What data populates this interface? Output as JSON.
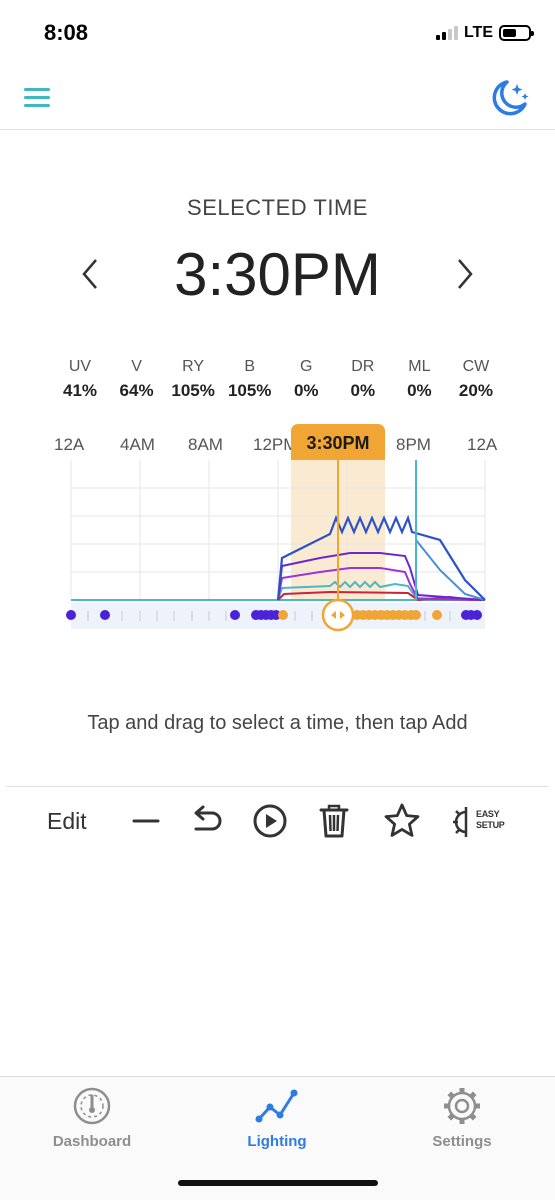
{
  "status_bar": {
    "time": "8:08",
    "network": "LTE",
    "battery_level": 0.55
  },
  "selected_time": {
    "label": "SELECTED TIME",
    "value": "3:30PM"
  },
  "channels": [
    {
      "name": "UV",
      "value": "41%"
    },
    {
      "name": "V",
      "value": "64%"
    },
    {
      "name": "RY",
      "value": "105%"
    },
    {
      "name": "B",
      "value": "105%"
    },
    {
      "name": "G",
      "value": "0%"
    },
    {
      "name": "DR",
      "value": "0%"
    },
    {
      "name": "ML",
      "value": "0%"
    },
    {
      "name": "CW",
      "value": "20%"
    }
  ],
  "time_axis": {
    "labels": [
      "12A",
      "4AM",
      "8AM",
      "12PM",
      "8PM",
      "12A"
    ],
    "cursor_label": "3:30PM"
  },
  "hint": "Tap and drag to select a time, then tap Add",
  "toolbar": {
    "edit_label": "Edit",
    "easy_setup_line1": "EASY",
    "easy_setup_line2": "SETUP"
  },
  "tabs": [
    {
      "label": "Dashboard",
      "icon": "gauge-icon",
      "active": false
    },
    {
      "label": "Lighting",
      "icon": "line-chart-icon",
      "active": true
    },
    {
      "label": "Settings",
      "icon": "gear-icon",
      "active": false
    }
  ],
  "colors": {
    "accent": "#2d7be5",
    "cursor": "#f0a534",
    "menu": "#3fb8c0",
    "channel_uv": "#6a28d0",
    "channel_violet": "#a030d8",
    "channel_blue": "#2b52c8",
    "channel_cw": "#4ab8c4"
  }
}
